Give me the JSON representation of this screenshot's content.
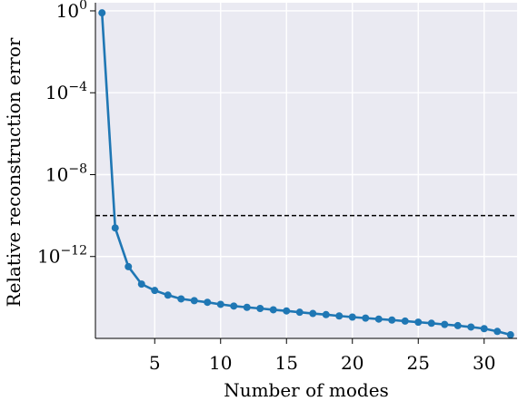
{
  "chart_data": {
    "type": "line",
    "title": "",
    "xlabel": "Number of modes",
    "ylabel": "Relative reconstruction error",
    "y_scale": "log",
    "grid": true,
    "legend": "none",
    "x": [
      1,
      2,
      3,
      4,
      5,
      6,
      7,
      8,
      9,
      10,
      11,
      12,
      13,
      14,
      15,
      16,
      17,
      18,
      19,
      20,
      21,
      22,
      23,
      24,
      25,
      26,
      27,
      28,
      29,
      30,
      31,
      32
    ],
    "series": [
      {
        "values": [
          0.8,
          2.5e-11,
          3.2e-13,
          4.5e-14,
          2.2e-14,
          1.3e-14,
          8.5e-15,
          7e-15,
          5.8e-15,
          4.6e-15,
          3.8e-15,
          3.3e-15,
          2.9e-15,
          2.5e-15,
          2.2e-15,
          1.9e-15,
          1.65e-15,
          1.45e-15,
          1.25e-15,
          1.1e-15,
          9.8e-16,
          8.8e-16,
          7.9e-16,
          7e-16,
          6.2e-16,
          5.5e-16,
          4.8e-16,
          4.2e-16,
          3.6e-16,
          3e-16,
          2.2e-16,
          1.5e-16
        ],
        "color": "#1f77b4"
      }
    ],
    "reference_line": {
      "y": 1e-10,
      "style": "dashed",
      "color": "#000000"
    },
    "xlim": [
      0.5,
      32.5
    ],
    "ylim": [
      1e-16,
      2.5
    ],
    "x_ticks": [
      5,
      10,
      15,
      20,
      25,
      30
    ],
    "x_tick_labels": [
      "5",
      "10",
      "15",
      "20",
      "25",
      "30"
    ],
    "y_ticks": [
      {
        "value": 1,
        "base": "10",
        "exp": "0"
      },
      {
        "value": 0.0001,
        "base": "10",
        "exp": "−4"
      },
      {
        "value": 1e-08,
        "base": "10",
        "exp": "−8"
      },
      {
        "value": 1e-12,
        "base": "10",
        "exp": "−12"
      }
    ],
    "colors": {
      "plot_background": "#eaeaf2",
      "grid": "#ffffff",
      "axis": "#000000"
    }
  }
}
